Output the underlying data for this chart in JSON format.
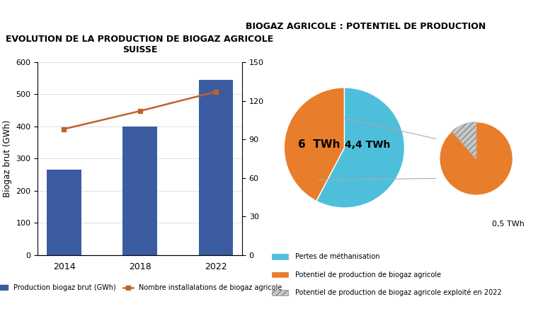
{
  "bar_title": "EVOLUTION DE LA PRODUCTION DE BIOGAZ AGRICOLE\nSUISSE",
  "bar_years": [
    2014,
    2018,
    2022
  ],
  "bar_values": [
    265,
    400,
    545
  ],
  "bar_color": "#3B5CA0",
  "line_values": [
    98,
    112,
    127
  ],
  "line_color": "#C0622B",
  "left_ylim": [
    0,
    600
  ],
  "left_yticks": [
    0,
    100,
    200,
    300,
    400,
    500,
    600
  ],
  "right_ylim": [
    0,
    150
  ],
  "right_yticks": [
    0,
    30,
    60,
    90,
    120,
    150
  ],
  "ylabel_left": "Biogaz brut (GWh)",
  "legend_bar": "Production biogaz brut (GWh)",
  "legend_line": "Nombre installalations de biogaz agricole",
  "pie_title": "BIOGAZ AGRICOLE : POTENTIEL DE PRODUCTION",
  "pie_values": [
    6.0,
    4.4
  ],
  "pie_colors": [
    "#4DBFDB",
    "#E87D2B"
  ],
  "pie_labels": [
    "6  TWh",
    "4,4 TWh"
  ],
  "small_pie_values": [
    3.9,
    0.5
  ],
  "small_pie_colors": [
    "#E87D2B",
    "#C8C8C8"
  ],
  "small_pie_hatch": [
    "",
    "////"
  ],
  "small_pie_label": "0,5 TWh",
  "legend_pie": [
    [
      "Pertes de méthanisation",
      "#4DBFDB",
      ""
    ],
    [
      "Potentiel de production de biogaz agricole",
      "#E87D2B",
      ""
    ],
    [
      "Potentiel de production de biogaz agricole exploité en 2022",
      "#C8C8C8",
      "////"
    ]
  ],
  "bg_color": "#FFFFFF",
  "conn_color": "#AAAAAA"
}
